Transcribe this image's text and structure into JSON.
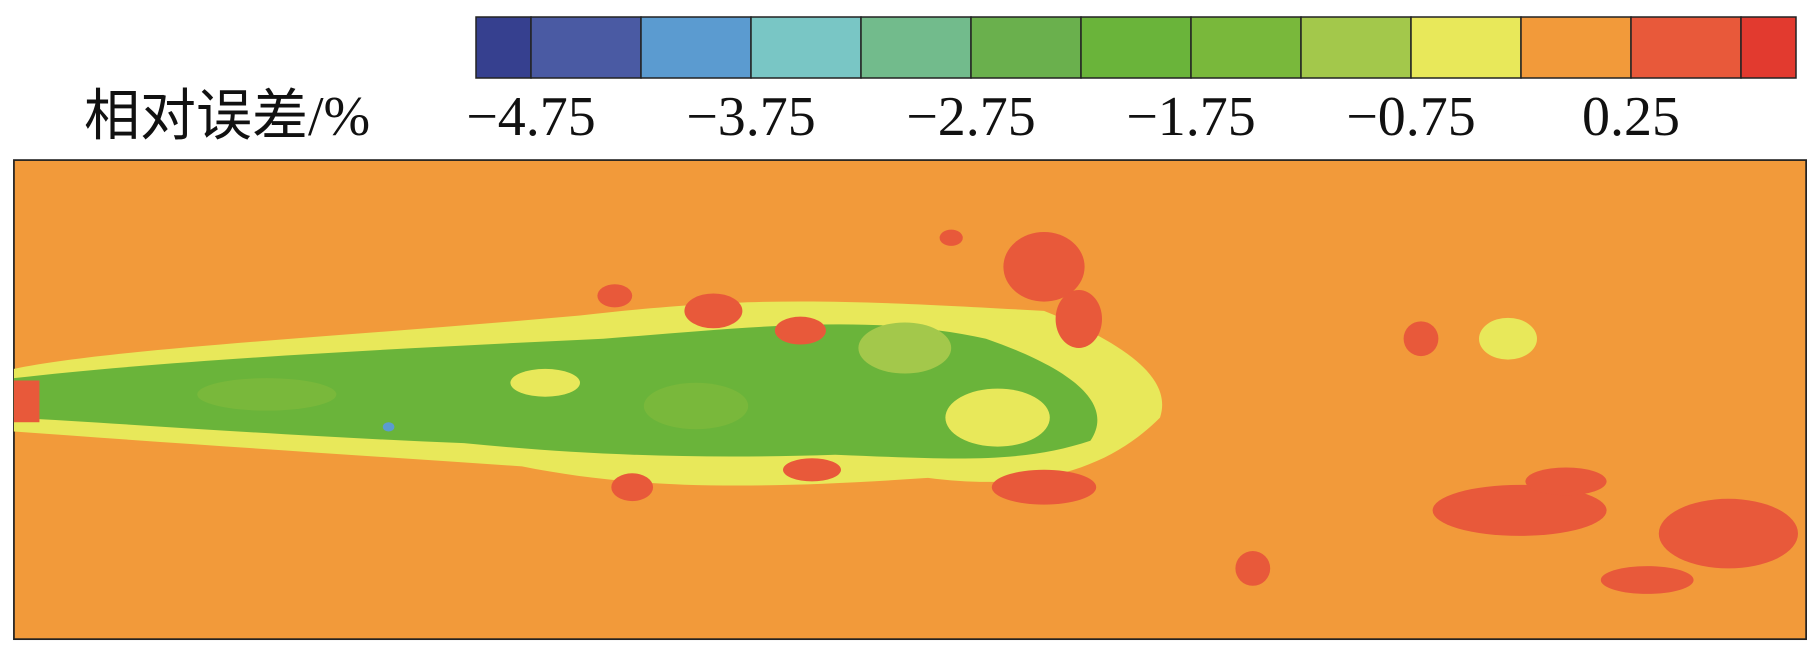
{
  "chart_data": {
    "type": "heatmap",
    "title": "相对误差/%",
    "colorbar": {
      "boundaries": [
        -5,
        -4.75,
        -4.25,
        -3.75,
        -3.25,
        -2.75,
        -2.25,
        -1.75,
        -1.25,
        -0.75,
        -0.25,
        0.25,
        0.75,
        1
      ],
      "colors": [
        "#36408f",
        "#4a5aa3",
        "#5b9bd0",
        "#79c6c5",
        "#72bb8c",
        "#6ab04d",
        "#6ab43a",
        "#79b83b",
        "#a3c84b",
        "#e8e85a",
        "#f29a3a",
        "#e8593a",
        "#e23a2f"
      ],
      "ticks": [
        {
          "value": -4.75,
          "label": "−4.75"
        },
        {
          "value": -3.75,
          "label": "−3.75"
        },
        {
          "value": -2.75,
          "label": "−2.75"
        },
        {
          "value": -1.75,
          "label": "−1.75"
        },
        {
          "value": -0.75,
          "label": "−0.75"
        },
        {
          "value": 0.25,
          "label": "0.25"
        }
      ]
    }
  }
}
